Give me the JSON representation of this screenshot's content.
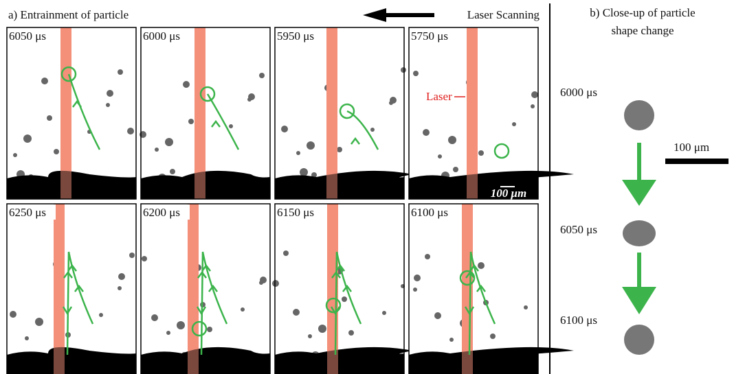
{
  "panel_a": {
    "title": "a) Entrainment of particle",
    "direction_label": "Laser Scanning",
    "frames": [
      {
        "time": "6050 μs"
      },
      {
        "time": "6000 μs"
      },
      {
        "time": "5950 μs"
      },
      {
        "time": "5750 μs"
      },
      {
        "time": "6250 μs"
      },
      {
        "time": "6200 μs"
      },
      {
        "time": "6150 μs"
      },
      {
        "time": "6100 μs"
      }
    ],
    "laser_label": "Laser",
    "scale_label": "100 μm"
  },
  "panel_b": {
    "title": [
      "b) Close-up of particle",
      "shape change"
    ],
    "times": [
      "6000 μs",
      "6050 μs",
      "6100 μs"
    ],
    "scale_label": "100 μm"
  }
}
